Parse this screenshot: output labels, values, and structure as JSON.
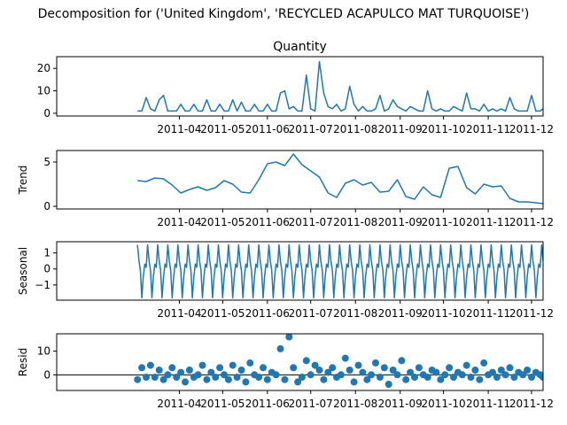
{
  "figure": {
    "suptitle": "Decomposition for ('United Kingdom', 'RECYCLED ACAPULCO MAT TURQUOISE')",
    "line_color": "#1f77b4",
    "axis_color": "#000000"
  },
  "x_axis": {
    "range": [
      "2011-01-06",
      "2011-12-09"
    ],
    "ticks": [
      {
        "date": "2011-04-01",
        "label": "2011-04"
      },
      {
        "date": "2011-05-01",
        "label": "2011-05"
      },
      {
        "date": "2011-06-01",
        "label": "2011-06"
      },
      {
        "date": "2011-07-01",
        "label": "2011-07"
      },
      {
        "date": "2011-08-01",
        "label": "2011-08"
      },
      {
        "date": "2011-09-01",
        "label": "2011-09"
      },
      {
        "date": "2011-10-01",
        "label": "2011-10"
      },
      {
        "date": "2011-11-01",
        "label": "2011-11"
      },
      {
        "date": "2011-12-01",
        "label": "2011-12"
      }
    ]
  },
  "chart_data": [
    {
      "type": "line",
      "title": "Quantity",
      "ylabel": "",
      "ylim": [
        -1.2,
        25.2
      ],
      "yticks": [
        0,
        10,
        20
      ],
      "x": [
        "2011-03-03",
        "2011-03-06",
        "2011-03-09",
        "2011-03-12",
        "2011-03-15",
        "2011-03-18",
        "2011-03-21",
        "2011-03-24",
        "2011-03-27",
        "2011-03-30",
        "2011-04-02",
        "2011-04-05",
        "2011-04-08",
        "2011-04-11",
        "2011-04-14",
        "2011-04-17",
        "2011-04-20",
        "2011-04-23",
        "2011-04-26",
        "2011-04-29",
        "2011-05-02",
        "2011-05-05",
        "2011-05-08",
        "2011-05-11",
        "2011-05-14",
        "2011-05-17",
        "2011-05-20",
        "2011-05-23",
        "2011-05-26",
        "2011-05-29",
        "2011-06-01",
        "2011-06-04",
        "2011-06-07",
        "2011-06-10",
        "2011-06-13",
        "2011-06-16",
        "2011-06-19",
        "2011-06-22",
        "2011-06-25",
        "2011-06-28",
        "2011-07-01",
        "2011-07-04",
        "2011-07-07",
        "2011-07-10",
        "2011-07-13",
        "2011-07-16",
        "2011-07-19",
        "2011-07-22",
        "2011-07-25",
        "2011-07-28",
        "2011-07-31",
        "2011-08-03",
        "2011-08-06",
        "2011-08-09",
        "2011-08-12",
        "2011-08-15",
        "2011-08-18",
        "2011-08-21",
        "2011-08-24",
        "2011-08-27",
        "2011-08-30",
        "2011-09-02",
        "2011-09-05",
        "2011-09-08",
        "2011-09-11",
        "2011-09-14",
        "2011-09-17",
        "2011-09-20",
        "2011-09-23",
        "2011-09-26",
        "2011-09-29",
        "2011-10-02",
        "2011-10-05",
        "2011-10-08",
        "2011-10-11",
        "2011-10-14",
        "2011-10-17",
        "2011-10-20",
        "2011-10-23",
        "2011-10-26",
        "2011-10-29",
        "2011-11-01",
        "2011-11-04",
        "2011-11-07",
        "2011-11-10",
        "2011-11-13",
        "2011-11-16",
        "2011-11-19",
        "2011-11-22",
        "2011-11-25",
        "2011-11-28",
        "2011-12-01",
        "2011-12-04",
        "2011-12-07",
        "2011-12-09"
      ],
      "values": [
        1,
        1,
        7,
        2,
        1,
        6,
        8,
        1,
        1,
        1,
        4,
        1,
        1,
        4,
        1,
        1,
        6,
        1,
        1,
        4,
        1,
        1,
        6,
        1,
        5,
        1,
        1,
        4,
        1,
        1,
        4,
        1,
        1,
        9,
        10,
        2,
        3,
        1,
        1,
        17,
        2,
        1,
        23,
        9,
        3,
        2,
        4,
        1,
        2,
        12,
        4,
        1,
        3,
        1,
        1,
        2,
        8,
        1,
        2,
        6,
        3,
        2,
        1,
        3,
        2,
        1,
        1,
        10,
        2,
        1,
        2,
        1,
        1,
        3,
        2,
        1,
        9,
        2,
        2,
        1,
        4,
        1,
        2,
        1,
        2,
        1,
        7,
        2,
        1,
        1,
        1,
        8,
        1,
        1,
        2
      ]
    },
    {
      "type": "line",
      "title": "",
      "ylabel": "Trend",
      "ylim": [
        -0.3,
        6.3
      ],
      "yticks": [
        0,
        5
      ],
      "x": [
        "2011-03-03",
        "2011-03-09",
        "2011-03-15",
        "2011-03-21",
        "2011-03-27",
        "2011-04-02",
        "2011-04-08",
        "2011-04-14",
        "2011-04-20",
        "2011-04-26",
        "2011-05-02",
        "2011-05-08",
        "2011-05-14",
        "2011-05-20",
        "2011-05-26",
        "2011-06-01",
        "2011-06-07",
        "2011-06-13",
        "2011-06-19",
        "2011-06-25",
        "2011-07-01",
        "2011-07-07",
        "2011-07-13",
        "2011-07-19",
        "2011-07-25",
        "2011-07-31",
        "2011-08-06",
        "2011-08-12",
        "2011-08-18",
        "2011-08-24",
        "2011-08-30",
        "2011-09-05",
        "2011-09-11",
        "2011-09-17",
        "2011-09-23",
        "2011-09-29",
        "2011-10-05",
        "2011-10-11",
        "2011-10-17",
        "2011-10-23",
        "2011-10-29",
        "2011-11-04",
        "2011-11-10",
        "2011-11-16",
        "2011-11-22",
        "2011-11-28",
        "2011-12-04",
        "2011-12-09"
      ],
      "values": [
        2.9,
        2.8,
        3.2,
        3.1,
        2.4,
        1.5,
        1.9,
        2.2,
        1.8,
        2.1,
        2.9,
        2.5,
        1.6,
        1.5,
        3.0,
        4.8,
        5.0,
        4.6,
        5.9,
        4.7,
        4.0,
        3.3,
        1.5,
        1.0,
        2.6,
        3.0,
        2.4,
        2.7,
        1.6,
        1.7,
        3.0,
        1.1,
        0.8,
        2.2,
        1.3,
        1.0,
        4.3,
        4.5,
        2.1,
        1.4,
        2.5,
        2.2,
        2.3,
        0.9,
        0.5,
        0.5,
        0.4,
        0.3
      ]
    },
    {
      "type": "line",
      "title": "",
      "ylabel": "Seasonal",
      "ylim": [
        -1.95,
        1.7
      ],
      "yticks": [
        -1,
        0,
        1
      ],
      "pattern": [
        1.5,
        0.5,
        -0.1,
        -1.8,
        -0.5,
        0.3,
        0.1
      ],
      "x_start": "2011-03-03",
      "x_end": "2011-12-09"
    },
    {
      "type": "scatter",
      "title": "",
      "ylabel": "Resid",
      "ylim": [
        -6.6,
        17.3
      ],
      "yticks": [
        0,
        10
      ],
      "baseline": 0,
      "x": [
        "2011-03-03",
        "2011-03-06",
        "2011-03-09",
        "2011-03-12",
        "2011-03-15",
        "2011-03-18",
        "2011-03-21",
        "2011-03-24",
        "2011-03-27",
        "2011-03-30",
        "2011-04-02",
        "2011-04-05",
        "2011-04-08",
        "2011-04-11",
        "2011-04-14",
        "2011-04-17",
        "2011-04-20",
        "2011-04-23",
        "2011-04-26",
        "2011-04-29",
        "2011-05-02",
        "2011-05-05",
        "2011-05-08",
        "2011-05-11",
        "2011-05-14",
        "2011-05-17",
        "2011-05-20",
        "2011-05-23",
        "2011-05-26",
        "2011-05-29",
        "2011-06-01",
        "2011-06-04",
        "2011-06-07",
        "2011-06-10",
        "2011-06-13",
        "2011-06-16",
        "2011-06-19",
        "2011-06-22",
        "2011-06-25",
        "2011-06-28",
        "2011-07-01",
        "2011-07-04",
        "2011-07-07",
        "2011-07-10",
        "2011-07-13",
        "2011-07-16",
        "2011-07-19",
        "2011-07-22",
        "2011-07-25",
        "2011-07-28",
        "2011-07-31",
        "2011-08-03",
        "2011-08-06",
        "2011-08-09",
        "2011-08-12",
        "2011-08-15",
        "2011-08-18",
        "2011-08-21",
        "2011-08-24",
        "2011-08-27",
        "2011-08-30",
        "2011-09-02",
        "2011-09-05",
        "2011-09-08",
        "2011-09-11",
        "2011-09-14",
        "2011-09-17",
        "2011-09-20",
        "2011-09-23",
        "2011-09-26",
        "2011-09-29",
        "2011-10-02",
        "2011-10-05",
        "2011-10-08",
        "2011-10-11",
        "2011-10-14",
        "2011-10-17",
        "2011-10-20",
        "2011-10-23",
        "2011-10-26",
        "2011-10-29",
        "2011-11-01",
        "2011-11-04",
        "2011-11-07",
        "2011-11-10",
        "2011-11-13",
        "2011-11-16",
        "2011-11-19",
        "2011-11-22",
        "2011-11-25",
        "2011-11-28",
        "2011-12-01",
        "2011-12-04",
        "2011-12-07",
        "2011-12-09"
      ],
      "values": [
        -2,
        3,
        -1,
        4,
        -1,
        2,
        -2,
        0,
        3,
        -1,
        1,
        -3,
        2,
        -1,
        0,
        4,
        -2,
        1,
        -1,
        3,
        0,
        -2,
        4,
        -1,
        2,
        -3,
        5,
        0,
        -1,
        3,
        -2,
        1,
        0,
        11,
        -2,
        16,
        3,
        -3,
        -1,
        6,
        0,
        4,
        2,
        -2,
        1,
        3,
        -1,
        0,
        7,
        2,
        -3,
        4,
        1,
        -2,
        0,
        5,
        -1,
        3,
        -4,
        2,
        0,
        6,
        -2,
        1,
        -1,
        3,
        0,
        -1,
        2,
        1,
        -2,
        0,
        3,
        -1,
        1,
        0,
        4,
        -1,
        2,
        -2,
        5,
        0,
        1,
        -1,
        2,
        0,
        3,
        -1,
        1,
        0,
        2,
        -1,
        1,
        0,
        -1
      ]
    }
  ]
}
